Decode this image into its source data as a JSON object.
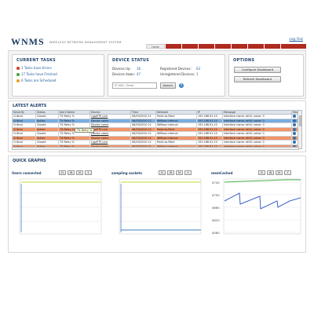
{
  "app": {
    "logo": "WNMS",
    "subtitle": "Wireless Network Management System",
    "logout": "Log Out"
  },
  "nav": {
    "tabs": [
      "Home",
      "",
      "",
      "",
      "",
      "",
      "",
      "",
      ""
    ]
  },
  "tasks": {
    "title": "CURRENT TASKS",
    "items": [
      {
        "label": "1 Tasks have Errors",
        "color": "#d23a2a"
      },
      {
        "label": "17 Tasks have Finished",
        "color": "#4aa43a"
      },
      {
        "label": "6 Tasks are Scheduled",
        "color": "#e8a020"
      }
    ]
  },
  "device_status": {
    "title": "DEVICE STATUS",
    "up_label": "Devices Up:",
    "up_value": "16",
    "down_label": "Devices down:",
    "down_value": "47",
    "registered_label": "Registered Devices:",
    "registered_value": "63",
    "unregistered_label": "Unregistered Devices:",
    "unregistered_value": "1",
    "search_placeholder": "IP, MAC, Serial...",
    "search_button": "Search",
    "help_icon": "?"
  },
  "options": {
    "title": "OPTIONS",
    "configure_button": "Configure Dashboard",
    "refresh_button": "Refresh Dashboard"
  },
  "alerts": {
    "title": "LATEST ALERTS",
    "columns": [
      "Severity",
      "Status",
      "Alert Name",
      "Device",
      "Time",
      "Network",
      "IP",
      "Message",
      "More"
    ],
    "rows": [
      {
        "style": "plain",
        "cells": [
          "Critical",
          "Closed",
          "TX Retry %",
          "LigoPTP-Link",
          "06/03/2010 11",
          "Point-to-Point",
          "192.168.91.10",
          "interface name: ath0; value: 0"
        ]
      },
      {
        "style": "selected",
        "cells": [
          "Critical",
          "Active",
          "TX Retry %",
          "Device name",
          "06/03/2010 11",
          "Wifibox internal",
          "192.168.91.10",
          "interface name: ath0; value: 0"
        ]
      },
      {
        "style": "plain",
        "cells": [
          "Critical",
          "Closed",
          "TX Retry %",
          "Device name",
          "06/03/2010 11",
          "Wifibox internal",
          "192.168.91.10",
          "interface name: ath0; value: 0"
        ]
      },
      {
        "style": "critical",
        "cells": [
          "Critical",
          "Active",
          "TX Retry %",
          "LigoPTP-Link",
          "06/03/2010 11",
          "Point-to-Point",
          "192.168.91.10",
          "interface name: ath0; value: 0"
        ]
      },
      {
        "style": "plain",
        "cells": [
          "Critical",
          "Closed",
          "TX Retry %",
          "Device name",
          "06/03/2010 11",
          "Wifibox internal",
          "192.168.91.10",
          "interface name: ath0; value: 0"
        ]
      },
      {
        "style": "critical",
        "cells": [
          "Critical",
          "Active",
          "TX Retry %",
          "Device name",
          "06/03/2010 11",
          "Wifibox internal",
          "192.168.91.10",
          "interface name: ath0; value: 0"
        ]
      },
      {
        "style": "plain",
        "cells": [
          "Critical",
          "Closed",
          "TX Retry %",
          "LigoPTP-Link",
          "06/03/2010 11",
          "Point-to-Point",
          "192.168.91.10",
          "interface name: ath0; value: 0"
        ]
      },
      {
        "style": "critical",
        "cells": [
          "Critical",
          "Active",
          "TX Retry %",
          "Device name",
          "06/03/2010 11",
          "Wifibox internal",
          "192.168.91.10",
          "interface name: ath0; value: 0"
        ]
      }
    ],
    "tooltip": "TX Retry %"
  },
  "quick_graphs": {
    "title": "QUICK GRAPHS",
    "period_buttons": [
      "D",
      "W",
      "M",
      "Y"
    ],
    "graphs": [
      {
        "title": "Users connected",
        "yticks": [
          "",
          "",
          "",
          ""
        ]
      },
      {
        "title": "sampling sockets",
        "yticks": [
          "",
          "",
          "",
          ""
        ]
      },
      {
        "title": "memCached",
        "yticks": [
          "$740",
          "$700",
          "$660",
          "$620",
          "$580"
        ]
      }
    ]
  },
  "colors": {
    "brand": "#1c3c64",
    "accent": "#b02b1f",
    "critical_row": "#f1956a",
    "selected_row": "#78aee3"
  }
}
